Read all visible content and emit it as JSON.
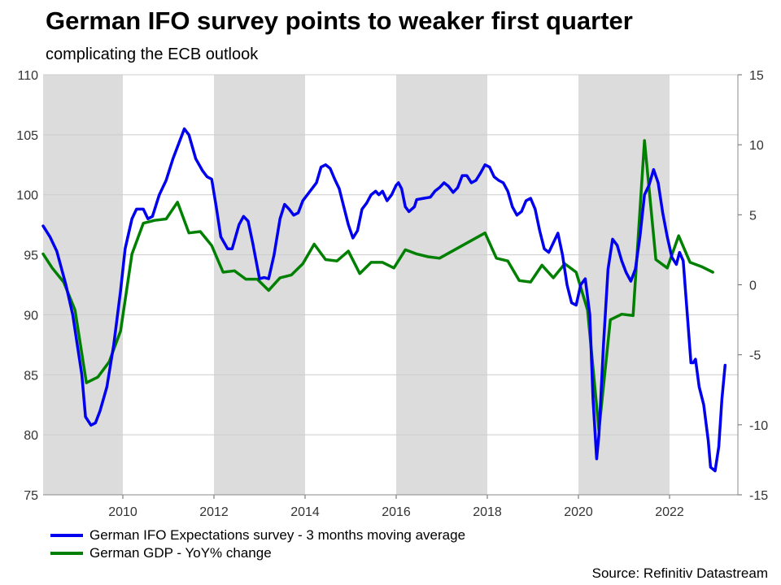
{
  "title": "German IFO survey points to weaker first quarter",
  "subtitle": "complicating the ECB outlook",
  "source": "Source: Refinitiv Datastream",
  "chart_data": {
    "type": "line",
    "x_range": [
      2008.25,
      2023.5
    ],
    "x_ticks": [
      2010,
      2012,
      2014,
      2016,
      2018,
      2020,
      2022
    ],
    "x_tick_labels": [
      "2010",
      "2012",
      "2014",
      "2016",
      "2018",
      "2020",
      "2022"
    ],
    "y_left": {
      "range": [
        75,
        110
      ],
      "ticks": [
        75,
        80,
        85,
        90,
        95,
        100,
        105,
        110
      ],
      "tick_labels": [
        "75",
        "80",
        "85",
        "90",
        "95",
        "100",
        "105",
        "110"
      ]
    },
    "y_right": {
      "range": [
        -15,
        15
      ],
      "ticks": [
        -15,
        -10,
        -5,
        0,
        5,
        10,
        15
      ],
      "tick_labels": [
        "-15",
        "-10",
        "-5",
        "0",
        "5",
        "10",
        "15"
      ]
    },
    "shaded_periods": [
      [
        2008.25,
        2010
      ],
      [
        2012,
        2014
      ],
      [
        2016,
        2018
      ],
      [
        2020,
        2022
      ]
    ],
    "grid": true,
    "colors": {
      "ifo": "#0000ee",
      "gdp": "#008000",
      "shade": "#dcdcdc",
      "grid": "#cccccc"
    },
    "series": [
      {
        "name": "German IFO Expectations survey - 3 months moving average",
        "axis": "left",
        "points": [
          [
            2008.25,
            97.4
          ],
          [
            2008.4,
            96.5
          ],
          [
            2008.55,
            95.3
          ],
          [
            2008.75,
            92.5
          ],
          [
            2008.9,
            90.0
          ],
          [
            2009.0,
            87.5
          ],
          [
            2009.1,
            85.0
          ],
          [
            2009.18,
            81.5
          ],
          [
            2009.3,
            80.8
          ],
          [
            2009.4,
            81.0
          ],
          [
            2009.5,
            82.0
          ],
          [
            2009.65,
            84.0
          ],
          [
            2009.8,
            87.5
          ],
          [
            2009.95,
            92.0
          ],
          [
            2010.05,
            95.5
          ],
          [
            2010.2,
            98.0
          ],
          [
            2010.3,
            98.8
          ],
          [
            2010.45,
            98.8
          ],
          [
            2010.55,
            98.0
          ],
          [
            2010.65,
            98.2
          ],
          [
            2010.8,
            100.0
          ],
          [
            2010.95,
            101.2
          ],
          [
            2011.1,
            103.0
          ],
          [
            2011.25,
            104.5
          ],
          [
            2011.35,
            105.5
          ],
          [
            2011.45,
            105.0
          ],
          [
            2011.6,
            103.0
          ],
          [
            2011.75,
            102.0
          ],
          [
            2011.85,
            101.5
          ],
          [
            2011.95,
            101.3
          ],
          [
            2012.05,
            99.0
          ],
          [
            2012.15,
            96.5
          ],
          [
            2012.3,
            95.5
          ],
          [
            2012.4,
            95.5
          ],
          [
            2012.55,
            97.5
          ],
          [
            2012.65,
            98.2
          ],
          [
            2012.75,
            97.8
          ],
          [
            2012.85,
            96.0
          ],
          [
            2013.0,
            93.0
          ],
          [
            2013.1,
            93.1
          ],
          [
            2013.2,
            93.0
          ],
          [
            2013.32,
            95.0
          ],
          [
            2013.45,
            98.0
          ],
          [
            2013.55,
            99.2
          ],
          [
            2013.65,
            98.8
          ],
          [
            2013.75,
            98.3
          ],
          [
            2013.85,
            98.5
          ],
          [
            2013.95,
            99.5
          ],
          [
            2014.05,
            100.0
          ],
          [
            2014.15,
            100.5
          ],
          [
            2014.25,
            101.0
          ],
          [
            2014.35,
            102.3
          ],
          [
            2014.45,
            102.5
          ],
          [
            2014.55,
            102.2
          ],
          [
            2014.65,
            101.3
          ],
          [
            2014.75,
            100.5
          ],
          [
            2014.85,
            99.0
          ],
          [
            2014.95,
            97.5
          ],
          [
            2015.05,
            96.4
          ],
          [
            2015.15,
            97.0
          ],
          [
            2015.25,
            98.8
          ],
          [
            2015.35,
            99.3
          ],
          [
            2015.45,
            100.0
          ],
          [
            2015.55,
            100.3
          ],
          [
            2015.62,
            100.0
          ],
          [
            2015.7,
            100.3
          ],
          [
            2015.8,
            99.5
          ],
          [
            2015.9,
            100.0
          ],
          [
            2016.0,
            100.8
          ],
          [
            2016.05,
            101.0
          ],
          [
            2016.12,
            100.5
          ],
          [
            2016.2,
            99.0
          ],
          [
            2016.28,
            98.6
          ],
          [
            2016.4,
            99.0
          ],
          [
            2016.45,
            99.6
          ],
          [
            2016.6,
            99.7
          ],
          [
            2016.75,
            99.8
          ],
          [
            2016.85,
            100.3
          ],
          [
            2016.95,
            100.6
          ],
          [
            2017.05,
            101.0
          ],
          [
            2017.15,
            100.7
          ],
          [
            2017.25,
            100.2
          ],
          [
            2017.35,
            100.6
          ],
          [
            2017.45,
            101.6
          ],
          [
            2017.55,
            101.6
          ],
          [
            2017.65,
            101.0
          ],
          [
            2017.75,
            101.2
          ],
          [
            2017.85,
            101.8
          ],
          [
            2017.95,
            102.5
          ],
          [
            2018.05,
            102.3
          ],
          [
            2018.15,
            101.5
          ],
          [
            2018.25,
            101.2
          ],
          [
            2018.35,
            101.0
          ],
          [
            2018.45,
            100.3
          ],
          [
            2018.55,
            99.0
          ],
          [
            2018.65,
            98.3
          ],
          [
            2018.75,
            98.6
          ],
          [
            2018.85,
            99.5
          ],
          [
            2018.95,
            99.7
          ],
          [
            2019.05,
            98.8
          ],
          [
            2019.15,
            97.0
          ],
          [
            2019.25,
            95.5
          ],
          [
            2019.35,
            95.2
          ],
          [
            2019.45,
            96.0
          ],
          [
            2019.55,
            96.8
          ],
          [
            2019.65,
            95.0
          ],
          [
            2019.75,
            92.5
          ],
          [
            2019.85,
            91.0
          ],
          [
            2019.95,
            90.8
          ],
          [
            2020.05,
            92.5
          ],
          [
            2020.15,
            93.0
          ],
          [
            2020.25,
            90.0
          ],
          [
            2020.32,
            83.0
          ],
          [
            2020.4,
            78.0
          ],
          [
            2020.45,
            80.0
          ],
          [
            2020.55,
            87.5
          ],
          [
            2020.65,
            93.8
          ],
          [
            2020.75,
            96.3
          ],
          [
            2020.85,
            95.8
          ],
          [
            2020.95,
            94.5
          ],
          [
            2021.05,
            93.5
          ],
          [
            2021.15,
            92.8
          ],
          [
            2021.25,
            93.8
          ],
          [
            2021.35,
            96.5
          ],
          [
            2021.45,
            100.0
          ],
          [
            2021.55,
            100.8
          ],
          [
            2021.65,
            102.1
          ],
          [
            2021.75,
            101.0
          ],
          [
            2021.85,
            98.5
          ],
          [
            2021.95,
            96.5
          ],
          [
            2022.05,
            94.8
          ],
          [
            2022.15,
            94.2
          ],
          [
            2022.22,
            95.2
          ],
          [
            2022.3,
            94.5
          ],
          [
            2022.4,
            89.5
          ],
          [
            2022.47,
            86.0
          ],
          [
            2022.52,
            86.0
          ],
          [
            2022.57,
            86.3
          ],
          [
            2022.65,
            84.0
          ],
          [
            2022.75,
            82.5
          ],
          [
            2022.85,
            79.5
          ],
          [
            2022.9,
            77.3
          ],
          [
            2023.0,
            77.0
          ],
          [
            2023.08,
            79.0
          ],
          [
            2023.15,
            83.0
          ],
          [
            2023.22,
            85.8
          ]
        ]
      },
      {
        "name": "German GDP - YoY% change",
        "axis": "right",
        "points": [
          [
            2008.25,
            2.2
          ],
          [
            2008.45,
            1.2
          ],
          [
            2008.7,
            0.2
          ],
          [
            2008.95,
            -1.8
          ],
          [
            2009.2,
            -7.0
          ],
          [
            2009.45,
            -6.6
          ],
          [
            2009.7,
            -5.5
          ],
          [
            2009.95,
            -3.3
          ],
          [
            2010.2,
            2.2
          ],
          [
            2010.45,
            4.4
          ],
          [
            2010.7,
            4.6
          ],
          [
            2010.95,
            4.7
          ],
          [
            2011.2,
            5.9
          ],
          [
            2011.45,
            3.7
          ],
          [
            2011.7,
            3.8
          ],
          [
            2011.95,
            2.8
          ],
          [
            2012.2,
            0.9
          ],
          [
            2012.45,
            1.0
          ],
          [
            2012.7,
            0.4
          ],
          [
            2012.95,
            0.4
          ],
          [
            2013.2,
            -0.4
          ],
          [
            2013.45,
            0.5
          ],
          [
            2013.7,
            0.7
          ],
          [
            2013.95,
            1.5
          ],
          [
            2014.2,
            2.9
          ],
          [
            2014.45,
            1.8
          ],
          [
            2014.7,
            1.7
          ],
          [
            2014.95,
            2.4
          ],
          [
            2015.2,
            0.8
          ],
          [
            2015.45,
            1.6
          ],
          [
            2015.7,
            1.6
          ],
          [
            2015.95,
            1.2
          ],
          [
            2016.2,
            2.5
          ],
          [
            2016.45,
            2.2
          ],
          [
            2016.7,
            2.0
          ],
          [
            2016.95,
            1.9
          ],
          [
            2017.95,
            3.7
          ],
          [
            2018.2,
            1.9
          ],
          [
            2018.45,
            1.7
          ],
          [
            2018.7,
            0.3
          ],
          [
            2018.95,
            0.2
          ],
          [
            2019.2,
            1.4
          ],
          [
            2019.45,
            0.5
          ],
          [
            2019.7,
            1.5
          ],
          [
            2019.95,
            0.9
          ],
          [
            2020.2,
            -1.8
          ],
          [
            2020.45,
            -10.4
          ],
          [
            2020.7,
            -2.5
          ],
          [
            2020.95,
            -2.1
          ],
          [
            2021.2,
            -2.2
          ],
          [
            2021.45,
            10.3
          ],
          [
            2021.7,
            1.8
          ],
          [
            2021.95,
            1.2
          ],
          [
            2022.2,
            3.5
          ],
          [
            2022.45,
            1.6
          ],
          [
            2022.7,
            1.3
          ],
          [
            2022.95,
            0.9
          ]
        ]
      }
    ]
  }
}
